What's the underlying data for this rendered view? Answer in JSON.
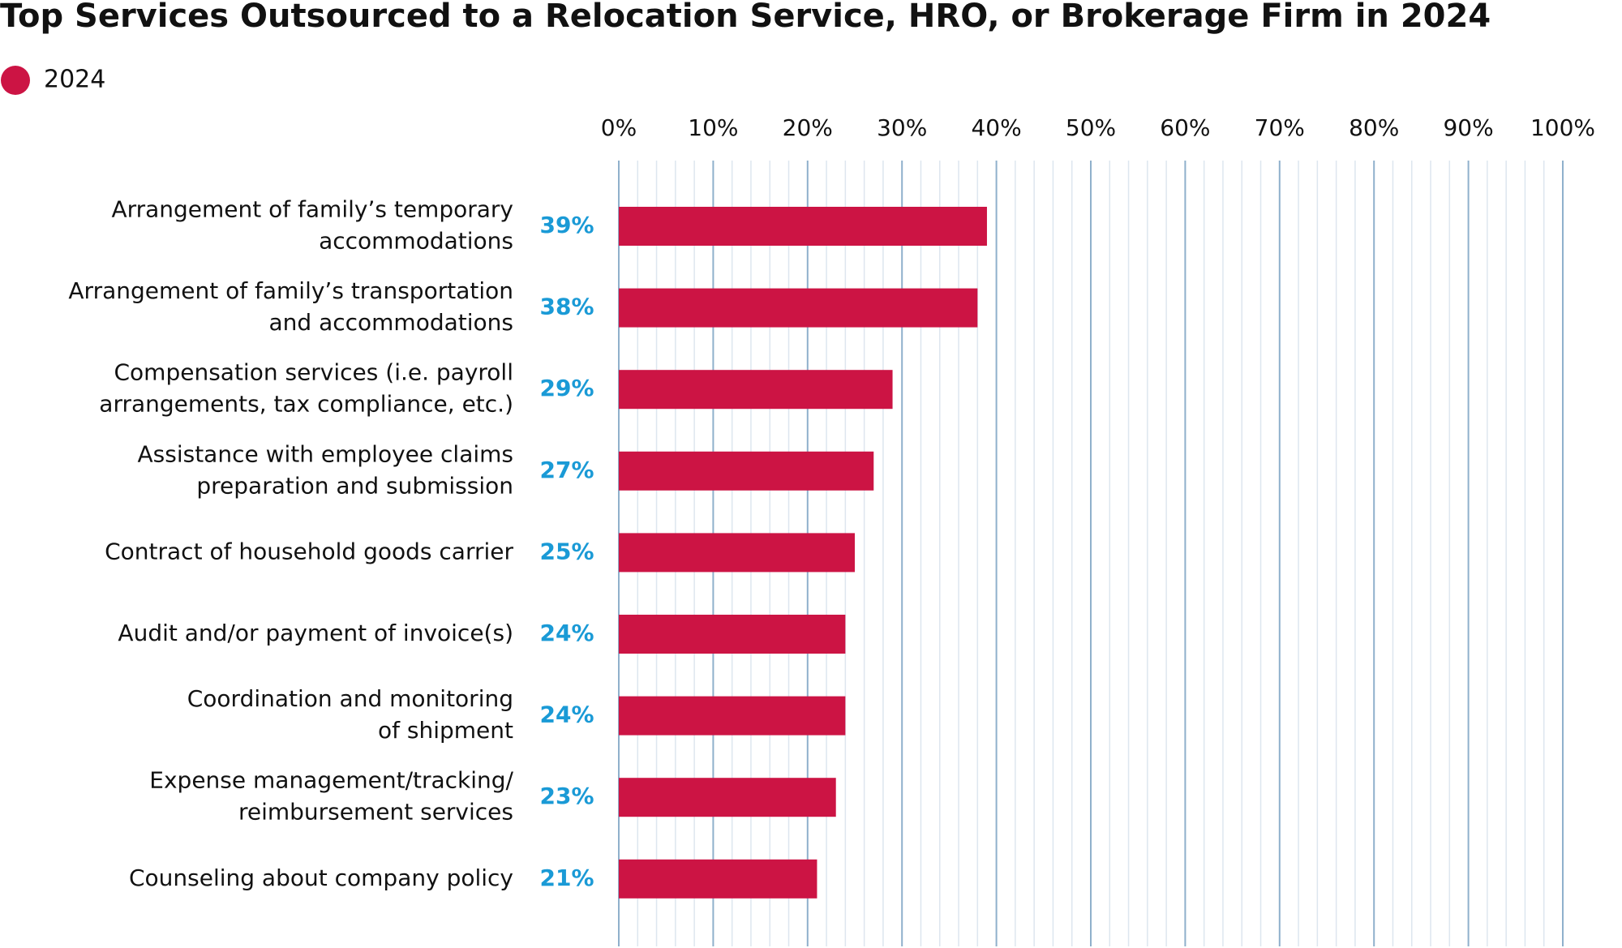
{
  "chart_data": {
    "type": "hbar",
    "title": "Top Services Outsourced to a Relocation Service, HRO, or Brokerage Firm in 2024",
    "categories": [
      [
        "Arrangement of family’s temporary",
        "accommodations"
      ],
      [
        "Arrangement of family’s transportation",
        "and accommodations"
      ],
      [
        "Compensation services (i.e. payroll",
        "arrangements, tax compliance, etc.)"
      ],
      [
        "Assistance with employee claims",
        "preparation and submission"
      ],
      [
        "Contract of household goods carrier"
      ],
      [
        "Audit and/or payment of invoice(s)"
      ],
      [
        "Coordination and monitoring",
        "of shipment"
      ],
      [
        "Expense management/tracking/",
        "reimbursement services"
      ],
      [
        "Counseling about company policy"
      ]
    ],
    "series": [
      {
        "name": "2024",
        "color": "#cc1444",
        "values": [
          39,
          38,
          29,
          27,
          25,
          24,
          24,
          23,
          21
        ],
        "value_labels": [
          "39%",
          "38%",
          "29%",
          "27%",
          "25%",
          "24%",
          "24%",
          "23%",
          "21%"
        ]
      }
    ],
    "xlim": [
      0,
      100
    ],
    "xticks": [
      {
        "value": 0,
        "label": "0%"
      },
      {
        "value": 10,
        "label": "10%"
      },
      {
        "value": 20,
        "label": "20%"
      },
      {
        "value": 30,
        "label": "30%"
      },
      {
        "value": 40,
        "label": "40%"
      },
      {
        "value": 50,
        "label": "50%"
      },
      {
        "value": 60,
        "label": "60%"
      },
      {
        "value": 70,
        "label": "70%"
      },
      {
        "value": 80,
        "label": "80%"
      },
      {
        "value": 90,
        "label": "90%"
      },
      {
        "value": 100,
        "label": "100%"
      }
    ],
    "xminor_ticks": [
      2,
      4,
      6,
      8,
      12,
      14,
      16,
      18,
      22,
      24,
      26,
      28,
      32,
      34,
      36,
      38,
      42,
      44,
      46,
      48,
      52,
      54,
      56,
      58,
      62,
      64,
      66,
      68,
      72,
      74,
      76,
      78,
      82,
      84,
      86,
      88,
      92,
      94,
      96,
      98
    ],
    "grid": true,
    "value_label_color": "#1a9ad6"
  }
}
